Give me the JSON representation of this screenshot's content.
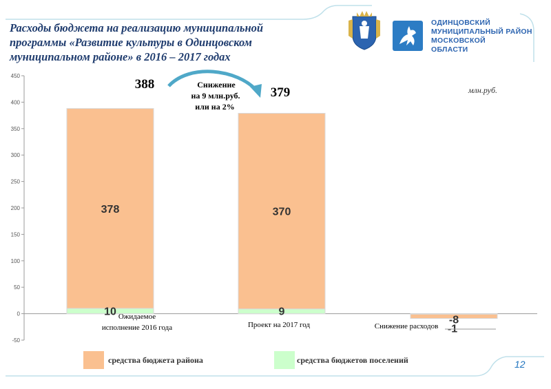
{
  "title_lines": [
    "Расходы бюджета на реализацию муниципальной",
    "программы «Развитие культуры в Одинцовском",
    "муниципальном районе» в 2016 – 2017 годах"
  ],
  "logo_lines": [
    "ОДИНЦОВСКИЙ",
    "МУНИЦИПАЛЬНЫЙ РАЙОН",
    "МОСКОВСКОЙ",
    "ОБЛАСТИ"
  ],
  "unit": "млн.руб.",
  "totals": {
    "left": "388",
    "right": "379"
  },
  "annotation_lines": [
    "Снижение",
    "на 9 млн.руб.",
    "или на 2%"
  ],
  "page_number": "12",
  "colors": {
    "district": "#fac090",
    "settlements": "#ccffcc",
    "arrow": "#4fa8c8",
    "title": "#1f3c6e"
  },
  "chart_data": {
    "type": "bar",
    "stacked": true,
    "categories_lines": [
      [
        "Ожидаемое",
        "исполнение 2016 года"
      ],
      [
        "Проект на 2017 год"
      ],
      [
        "Снижение расходов"
      ]
    ],
    "yticks": [
      450,
      400,
      350,
      300,
      250,
      200,
      150,
      100,
      50,
      0,
      -50
    ],
    "ylim": [
      -50,
      450
    ],
    "grid": false,
    "legend_position": "bottom",
    "series": [
      {
        "name": "средства бюджетов поселений",
        "values": [
          10,
          9,
          -1
        ],
        "labels": [
          "10",
          "9",
          "-1"
        ]
      },
      {
        "name": "средства бюджета района",
        "values": [
          378,
          370,
          -8
        ],
        "labels": [
          "378",
          "370",
          "-8"
        ]
      }
    ]
  }
}
